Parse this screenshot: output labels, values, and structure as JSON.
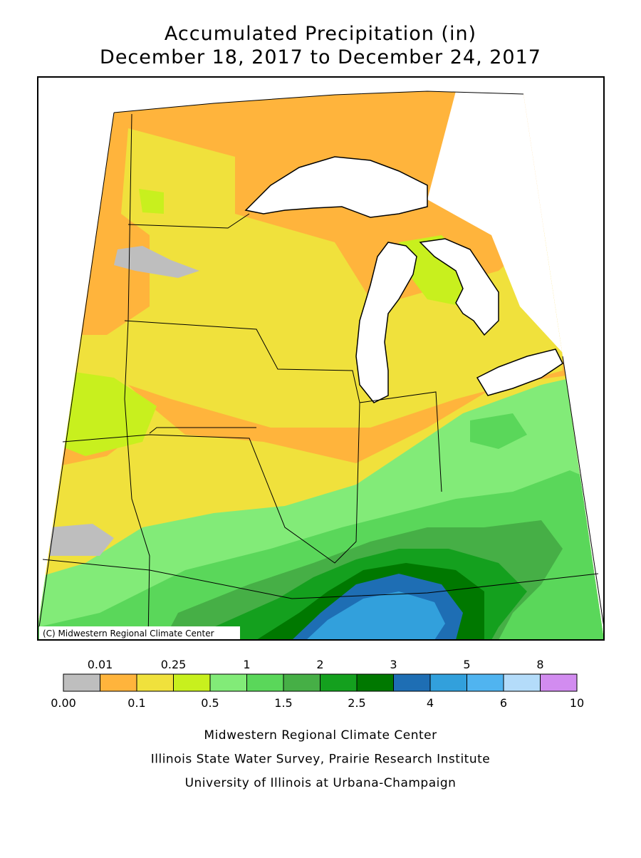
{
  "title": [
    "Accumulated Precipitation (in)",
    "December 18, 2017 to December 24, 2017"
  ],
  "map": {
    "copyright": "(C) Midwestern Regional Climate Center"
  },
  "legend": {
    "colors": [
      "#bebebe",
      "#ffb43c",
      "#f0e13c",
      "#c8f01e",
      "#82eb78",
      "#5ad75a",
      "#46af46",
      "#14a01e",
      "#007800",
      "#1e6eb4",
      "#32a0dc",
      "#50b4f0",
      "#b4dcfa",
      "#d28cf0"
    ],
    "labels": [
      "0.00",
      "0.01",
      "0.1",
      "0.25",
      "0.5",
      "1",
      "1.5",
      "2",
      "2.5",
      "3",
      "4",
      "5",
      "6",
      "8",
      "10"
    ]
  },
  "credits": [
    "Midwestern Regional Climate Center",
    "Illinois State Water Survey, Prairie Research Institute",
    "University of Illinois at Urbana-Champaign"
  ]
}
